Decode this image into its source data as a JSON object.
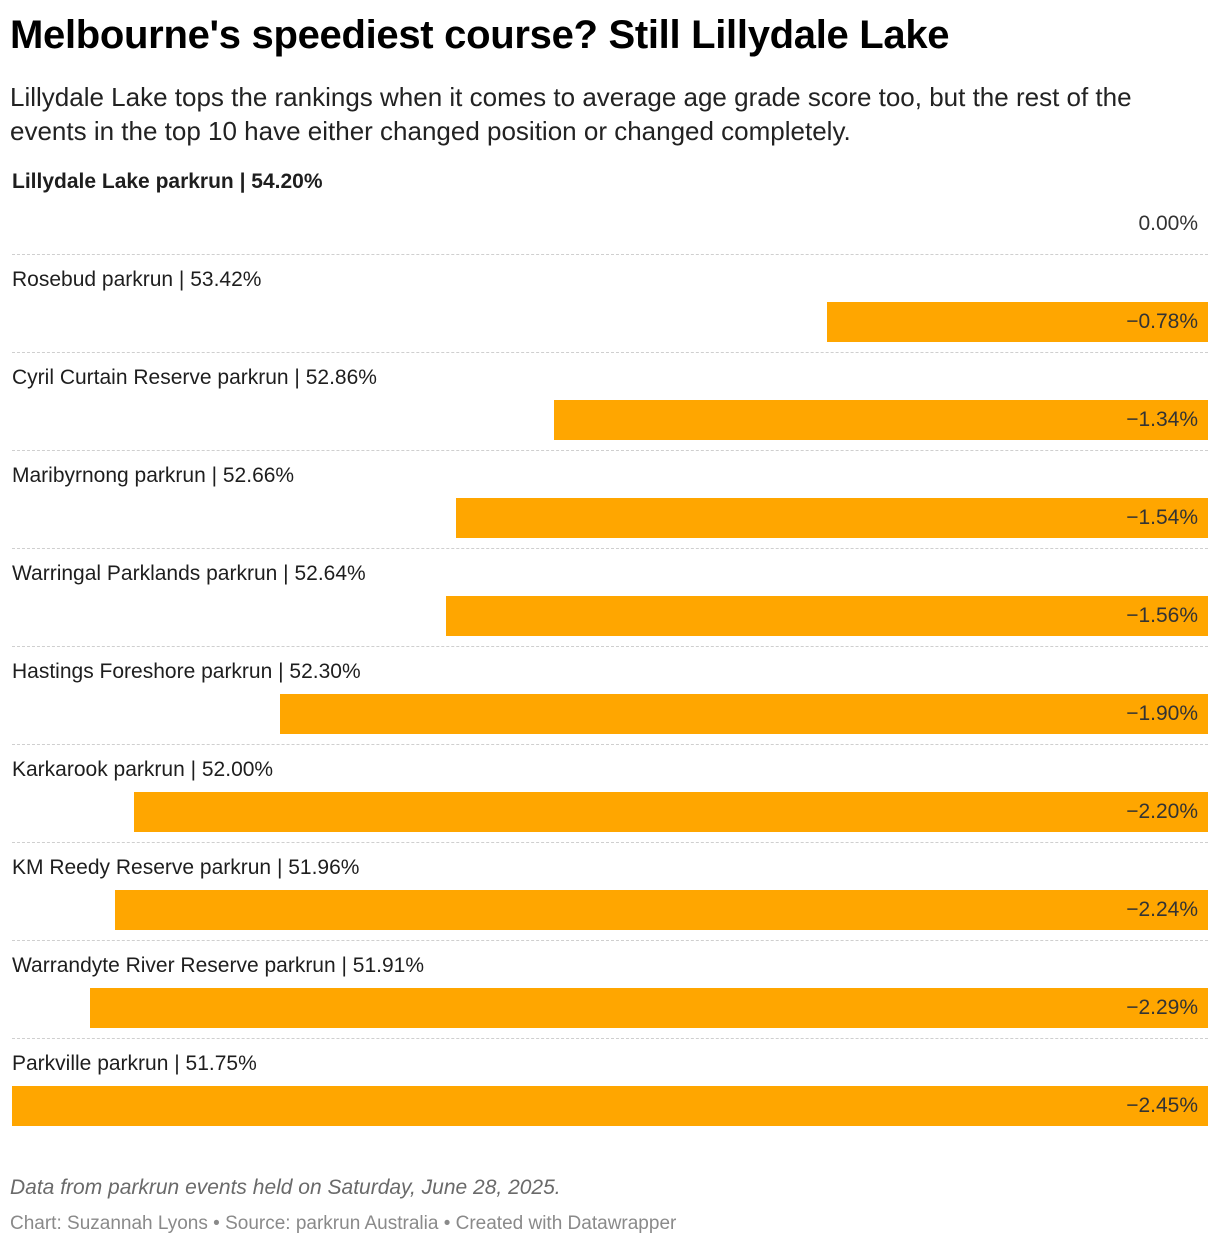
{
  "title": "Melbourne's speediest course? Still Lillydale Lake",
  "subtitle": "Lillydale Lake tops the rankings when it comes to average age grade score too, but the rest of the events in the top 10 have either changed position or changed completely.",
  "note": "Data from parkrun events held on Saturday, June 28, 2025.",
  "credits": "Chart: Suzannah Lyons • Source: parkrun Australia • Created with Datawrapper",
  "colors": {
    "bar": "#ffa600",
    "text": "#1e1e1e",
    "muted": "#8a8a8a"
  },
  "chart_data": {
    "type": "bar",
    "orientation": "horizontal",
    "title": "Melbourne's speediest course? Still Lillydale Lake",
    "subtitle": "Lillydale Lake tops the rankings when it comes to average age grade score too, but the rest of the events in the top 10 have either changed position or changed completely.",
    "xlabel": "",
    "ylabel": "",
    "xlim": [
      -2.45,
      0
    ],
    "grid": false,
    "legend": "none",
    "categories": [
      "Lillydale Lake parkrun | 54.20%",
      "Rosebud parkrun | 53.42%",
      "Cyril Curtain Reserve parkrun | 52.86%",
      "Maribyrnong parkrun | 52.66%",
      "Warringal Parklands parkrun | 52.64%",
      "Hastings Foreshore parkrun | 52.30%",
      "Karkarook parkrun | 52.00%",
      "KM Reedy Reserve parkrun | 51.96%",
      "Warrandyte River Reserve parkrun | 51.91%",
      "Parkville parkrun | 51.75%"
    ],
    "values": [
      0.0,
      -0.78,
      -1.34,
      -1.54,
      -1.56,
      -1.9,
      -2.2,
      -2.24,
      -2.29,
      -2.45
    ],
    "value_labels": [
      "0.00%",
      "−0.78%",
      "−1.34%",
      "−1.54%",
      "−1.56%",
      "−1.90%",
      "−2.20%",
      "−2.24%",
      "−2.29%",
      "−2.45%"
    ],
    "highlight": "Lillydale Lake parkrun | 54.20%"
  }
}
